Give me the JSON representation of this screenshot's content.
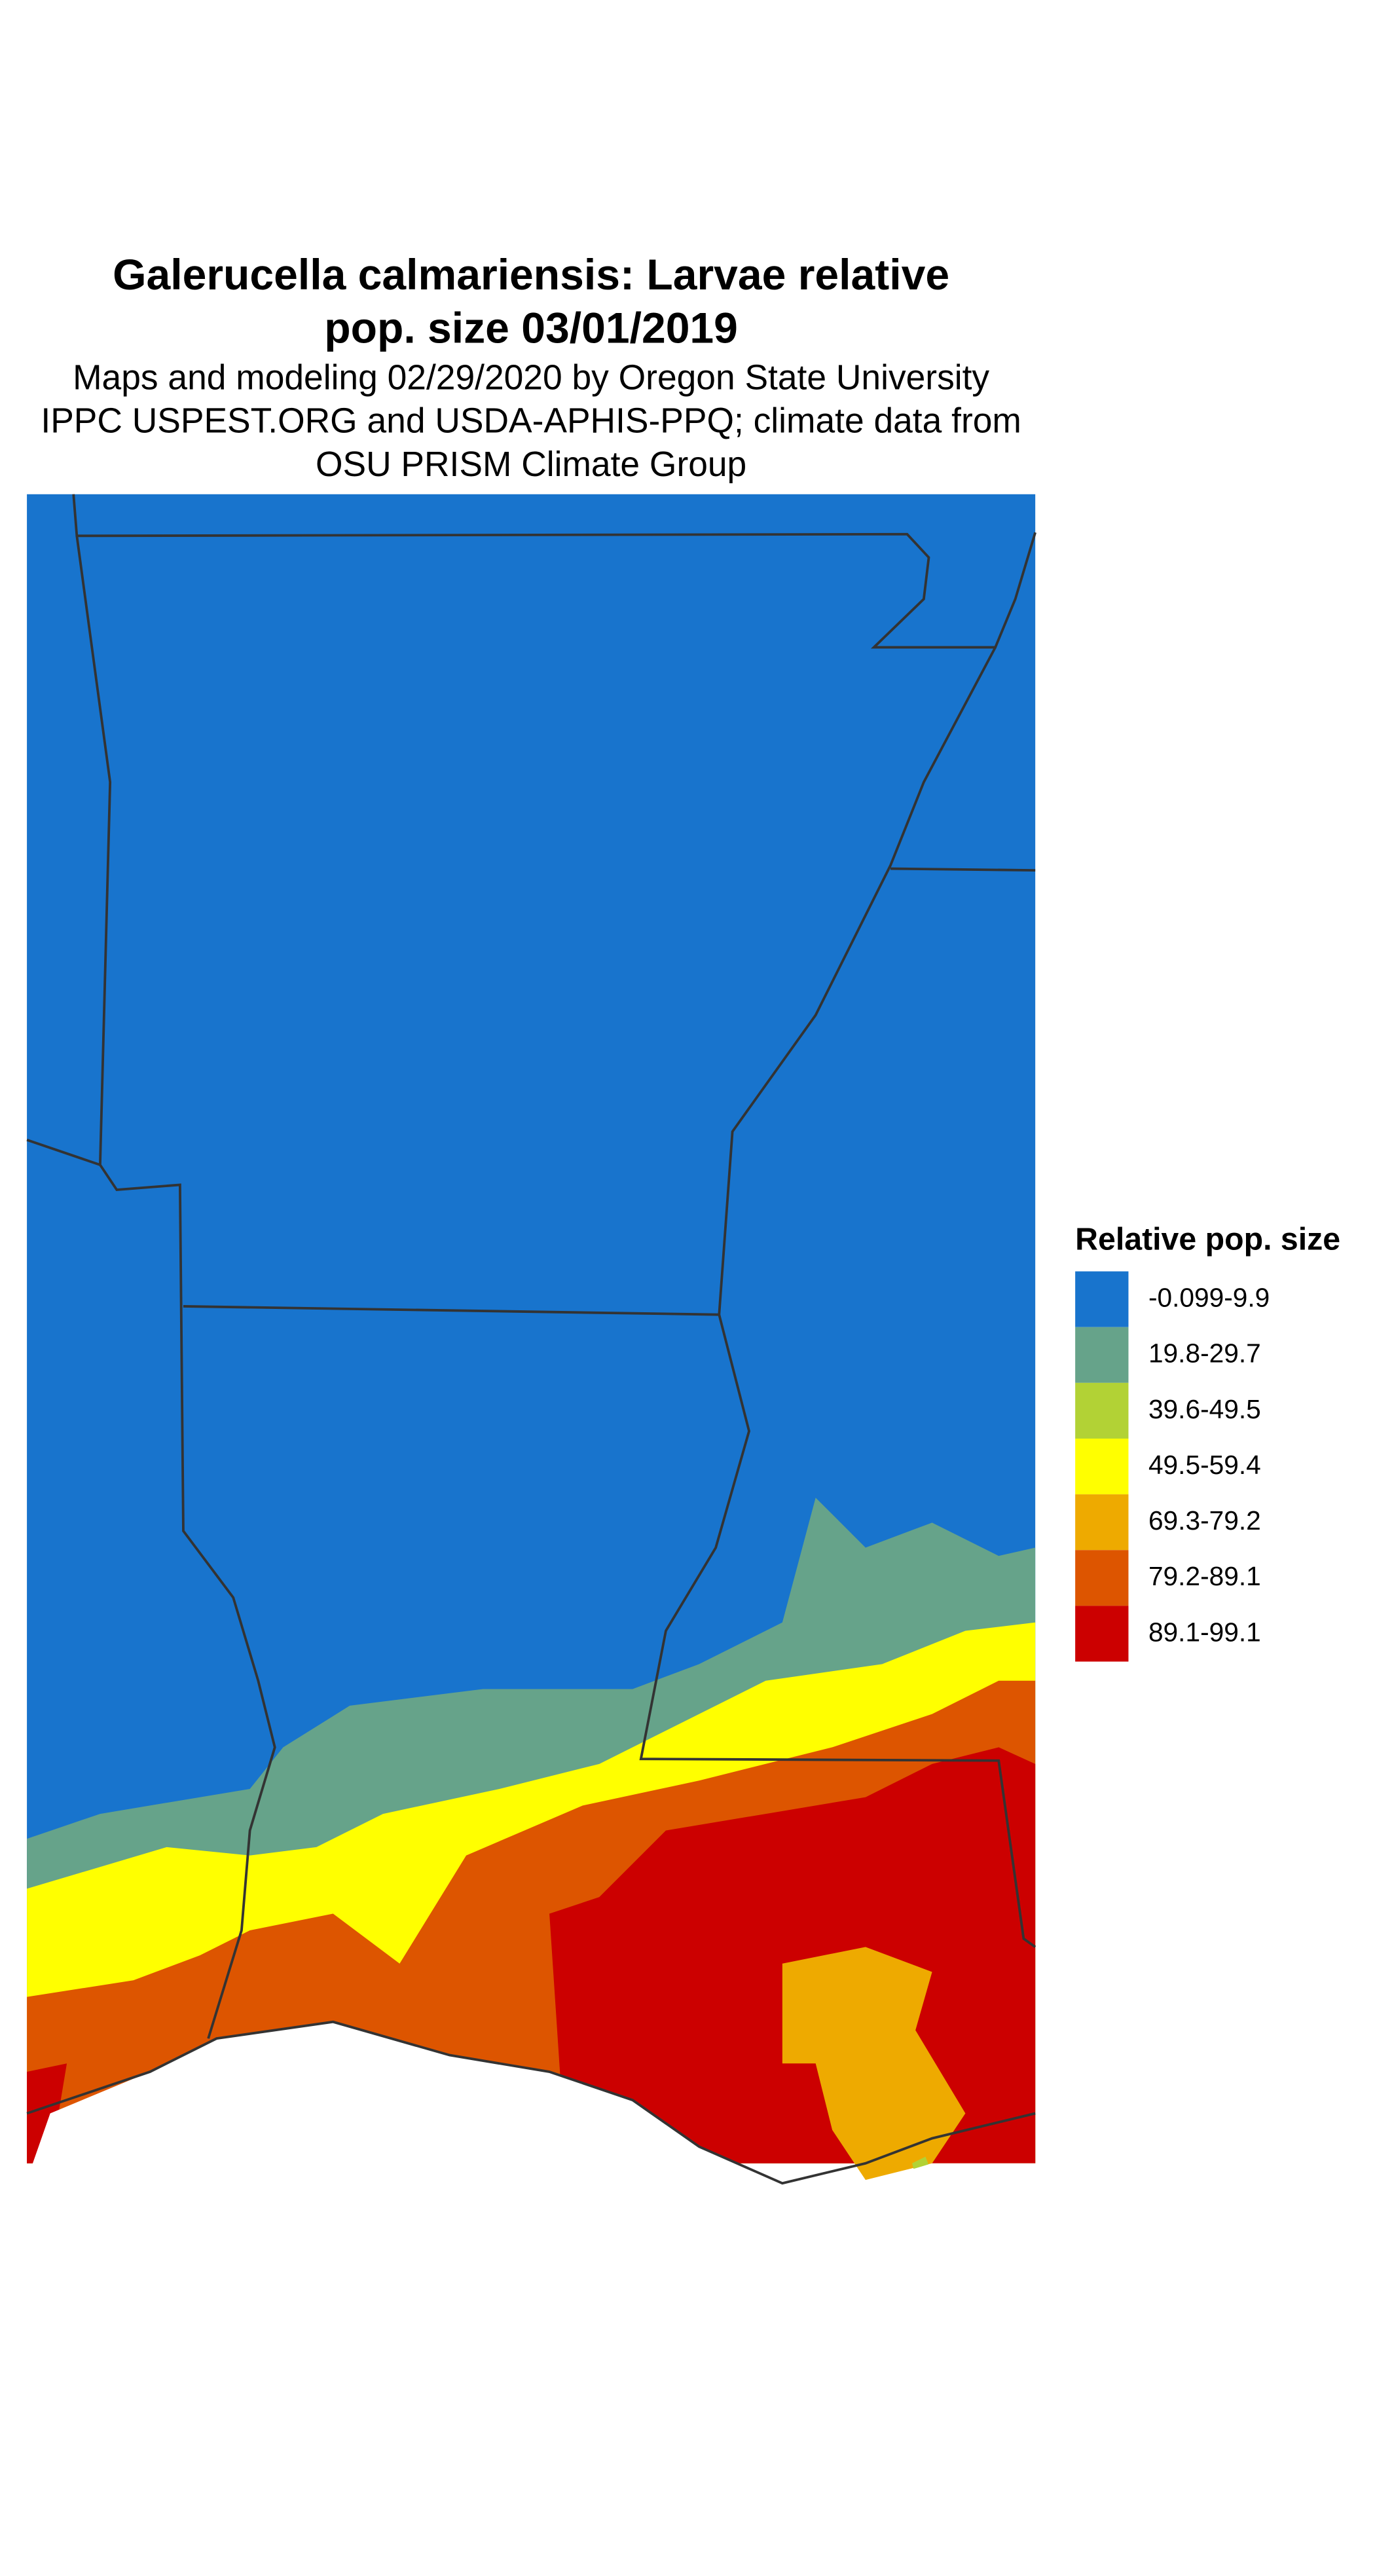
{
  "header": {
    "title": [
      "Galerucella calmariensis: Larvae relative",
      "pop. size 03/01/2019"
    ],
    "subtitle": [
      "Maps and modeling 02/29/2020 by Oregon State University",
      "IPPC USPEST.ORG and USDA-APHIS-PPQ; climate data from",
      "OSU PRISM Climate Group"
    ]
  },
  "legend": {
    "title": "Relative pop. size",
    "items": [
      {
        "label": "-0.099-9.9",
        "color": "#1874cd"
      },
      {
        "label": "19.8-29.7",
        "color": "#66a38a"
      },
      {
        "label": "39.6-49.5",
        "color": "#b2d235"
      },
      {
        "label": "49.5-59.4",
        "color": "#ffff00"
      },
      {
        "label": "69.3-79.2",
        "color": "#eeaa00"
      },
      {
        "label": "79.2-89.1",
        "color": "#dd5500"
      },
      {
        "label": "89.1-99.1",
        "color": "#cc0000"
      }
    ]
  }
}
